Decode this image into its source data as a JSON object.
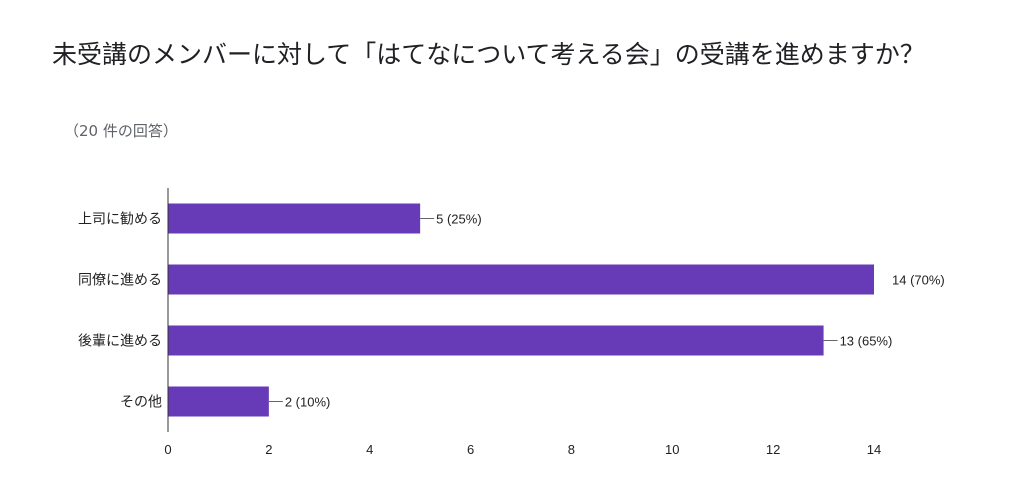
{
  "chart_data": {
    "type": "bar",
    "orientation": "horizontal",
    "title": "未受講のメンバーに対して「はてなについて考える会」の受講を進めますか？",
    "subtitle": "（20 件の回答）",
    "categories": [
      "上司に勧める",
      "同僚に進める",
      "後輩に進める",
      "その他"
    ],
    "values": [
      5,
      14,
      13,
      2
    ],
    "data_labels": [
      "5 (25%)",
      "14 (70%)",
      "13 (65%)",
      "2 (10%)"
    ],
    "xlim": [
      0,
      14
    ],
    "xticks": [
      0,
      2,
      4,
      6,
      8,
      10,
      12,
      14
    ],
    "grid": false,
    "bar_color": "#673ab7"
  }
}
